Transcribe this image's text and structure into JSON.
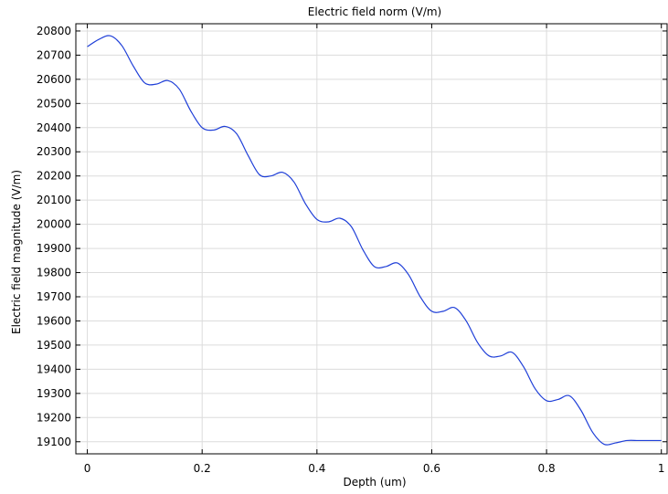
{
  "chart_data": {
    "type": "line",
    "title": "Electric field norm (V/m)",
    "xlabel": "Depth (um)",
    "ylabel": "Electric field magnitude (V/m)",
    "xlim": [
      -0.02,
      1.01
    ],
    "ylim": [
      19050,
      20830
    ],
    "x_ticks": [
      0,
      0.2,
      0.4,
      0.6,
      0.8,
      1
    ],
    "x_tick_labels": [
      "0",
      "0.2",
      "0.4",
      "0.6",
      "0.8",
      "1"
    ],
    "y_ticks": [
      19100,
      19200,
      19300,
      19400,
      19500,
      19600,
      19700,
      19800,
      19900,
      20000,
      20100,
      20200,
      20300,
      20400,
      20500,
      20600,
      20700,
      20800
    ],
    "y_tick_labels": [
      "19100",
      "19200",
      "19300",
      "19400",
      "19500",
      "19600",
      "19700",
      "19800",
      "19900",
      "20000",
      "20100",
      "20200",
      "20300",
      "20400",
      "20500",
      "20600",
      "20700",
      "20800"
    ],
    "grid": true,
    "series": [
      {
        "color": "#1f3fd8",
        "x": [
          0,
          0.02,
          0.04,
          0.06,
          0.08,
          0.1,
          0.12,
          0.14,
          0.16,
          0.18,
          0.2,
          0.22,
          0.24,
          0.26,
          0.28,
          0.3,
          0.32,
          0.34,
          0.36,
          0.38,
          0.4,
          0.42,
          0.44,
          0.46,
          0.48,
          0.5,
          0.52,
          0.54,
          0.56,
          0.58,
          0.6,
          0.62,
          0.64,
          0.66,
          0.68,
          0.7,
          0.72,
          0.74,
          0.76,
          0.78,
          0.8,
          0.82,
          0.84,
          0.86,
          0.88,
          0.9,
          0.92,
          0.94,
          0.96,
          0.98,
          1.0
        ],
        "y": [
          20735,
          20765,
          20780,
          20740,
          20655,
          20585,
          20580,
          20595,
          20560,
          20470,
          20400,
          20390,
          20405,
          20375,
          20285,
          20205,
          20200,
          20215,
          20175,
          20085,
          20020,
          20010,
          20025,
          19990,
          19895,
          19825,
          19825,
          19840,
          19790,
          19700,
          19640,
          19640,
          19655,
          19600,
          19510,
          19455,
          19455,
          19470,
          19410,
          19320,
          19270,
          19275,
          19290,
          19230,
          19140,
          19090,
          19095,
          19105,
          19105,
          19105,
          19105
        ]
      }
    ]
  }
}
